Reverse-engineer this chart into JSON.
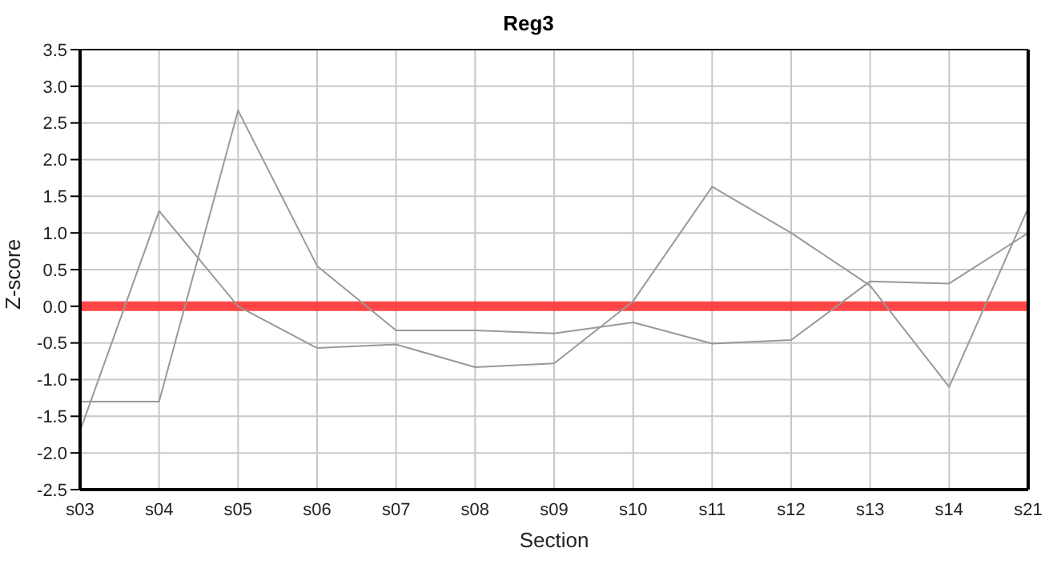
{
  "chart_data": {
    "type": "line",
    "title": "Reg3",
    "xlabel": "Section",
    "ylabel": "Z-score",
    "categories": [
      "s03",
      "s04",
      "s05",
      "s06",
      "s07",
      "s08",
      "s09",
      "s10",
      "s11",
      "s12",
      "s13",
      "s14",
      "s21"
    ],
    "series": [
      {
        "color": "#999999",
        "values": [
          -1.7,
          1.3,
          0.0,
          -0.57,
          -0.52,
          -0.83,
          -0.78,
          0.07,
          1.63,
          1.0,
          0.28,
          -1.1,
          1.34
        ]
      },
      {
        "color": "#999999",
        "values": [
          -1.3,
          -1.3,
          2.67,
          0.55,
          -0.33,
          -0.33,
          -0.37,
          -0.22,
          -0.51,
          -0.46,
          0.34,
          0.31,
          1.0
        ]
      }
    ],
    "ylim": [
      -2.5,
      3.5
    ],
    "yticks": [
      -2.5,
      {
        "value": -2,
        "label": "-2.0"
      },
      -1.5,
      {
        "value": -1,
        "label": "-1.0"
      },
      -0.5,
      {
        "value": 0,
        "label": "0.0"
      },
      0.5,
      {
        "value": 1,
        "label": "1.0"
      },
      1.5,
      {
        "value": 2,
        "label": "2.0"
      },
      2.5,
      {
        "value": 3,
        "label": "3.0"
      },
      3.5
    ],
    "ref_lines": [
      {
        "axis": "y",
        "value": 0,
        "color": "#ff3333"
      }
    ],
    "grid": true,
    "legend": false,
    "marker": "none",
    "line_style": "solid"
  }
}
